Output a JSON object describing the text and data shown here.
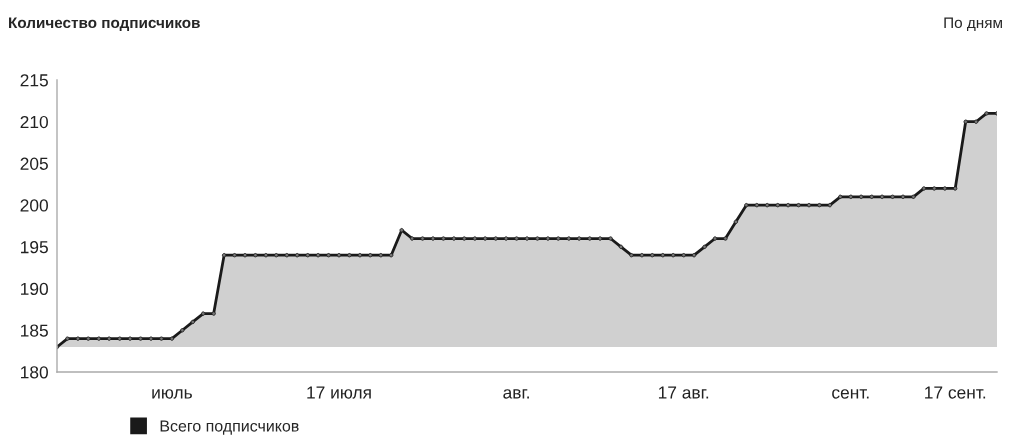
{
  "chart_data": {
    "type": "area",
    "title": "Количество подписчиков",
    "annotations": [
      "По дням"
    ],
    "categories": [
      null,
      null,
      null,
      null,
      null,
      null,
      null,
      null,
      null,
      null,
      null,
      "июль",
      null,
      null,
      null,
      null,
      null,
      null,
      null,
      null,
      null,
      null,
      null,
      null,
      null,
      null,
      null,
      "17 июля",
      null,
      null,
      null,
      null,
      null,
      null,
      null,
      null,
      null,
      null,
      null,
      null,
      null,
      null,
      null,
      null,
      "авг.",
      null,
      null,
      null,
      null,
      null,
      null,
      null,
      null,
      null,
      null,
      null,
      null,
      null,
      null,
      null,
      "17 авг.",
      null,
      null,
      null,
      null,
      null,
      null,
      null,
      null,
      null,
      null,
      null,
      null,
      null,
      null,
      null,
      "сент.",
      null,
      null,
      null,
      null,
      null,
      null,
      null,
      null,
      null,
      "17 сент.",
      null,
      null,
      null,
      null
    ],
    "series": [
      {
        "name": "Всего подписчиков",
        "color": "#1a1a1a",
        "values": [
          183,
          184,
          184,
          184,
          184,
          184,
          184,
          184,
          184,
          184,
          184,
          184,
          185,
          186,
          187,
          187,
          194,
          194,
          194,
          194,
          194,
          194,
          194,
          194,
          194,
          194,
          194,
          194,
          194,
          194,
          194,
          194,
          194,
          197,
          196,
          196,
          196,
          196,
          196,
          196,
          196,
          196,
          196,
          196,
          196,
          196,
          196,
          196,
          196,
          196,
          196,
          196,
          196,
          196,
          195,
          194,
          194,
          194,
          194,
          194,
          194,
          194,
          195,
          196,
          196,
          198,
          200,
          200,
          200,
          200,
          200,
          200,
          200,
          200,
          200,
          201,
          201,
          201,
          201,
          201,
          201,
          201,
          201,
          202,
          202,
          202,
          202,
          210,
          210,
          211,
          211
        ]
      }
    ],
    "ylim": [
      180,
      215
    ],
    "yticks": [
      180,
      185,
      190,
      195,
      200,
      205,
      210,
      215
    ],
    "grid": false,
    "legend": "bottom left",
    "marker": "circle",
    "line_style": "solid"
  }
}
